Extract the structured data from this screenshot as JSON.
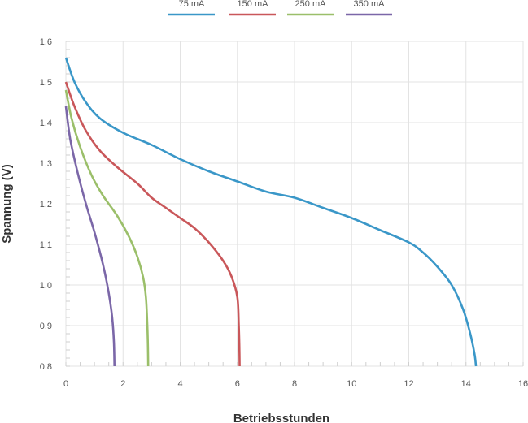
{
  "chart_data": {
    "type": "line",
    "xlabel": "Betriebsstunden",
    "ylabel": "Spannung (V)",
    "xlim": [
      0,
      16
    ],
    "ylim": [
      0.8,
      1.6
    ],
    "x_ticks": [
      "0",
      "2",
      "4",
      "6",
      "8",
      "10",
      "12",
      "14",
      "16"
    ],
    "y_ticks": [
      "0.8",
      "0.9",
      "1.0",
      "1.1",
      "1.2",
      "1.3",
      "1.4",
      "1.5",
      "1.6"
    ],
    "grid": true,
    "legend_position": "top",
    "series": [
      {
        "name": "75 mA",
        "color": "#3a97c8",
        "points": [
          [
            0,
            1.56
          ],
          [
            0.3,
            1.5
          ],
          [
            0.7,
            1.45
          ],
          [
            1.2,
            1.41
          ],
          [
            2,
            1.375
          ],
          [
            3,
            1.345
          ],
          [
            4,
            1.31
          ],
          [
            5,
            1.28
          ],
          [
            6,
            1.255
          ],
          [
            7,
            1.23
          ],
          [
            8,
            1.215
          ],
          [
            9,
            1.19
          ],
          [
            10,
            1.165
          ],
          [
            11,
            1.135
          ],
          [
            12,
            1.105
          ],
          [
            12.5,
            1.08
          ],
          [
            13,
            1.045
          ],
          [
            13.5,
            1.0
          ],
          [
            13.9,
            0.94
          ],
          [
            14.15,
            0.88
          ],
          [
            14.3,
            0.83
          ],
          [
            14.35,
            0.8
          ]
        ]
      },
      {
        "name": "150 mA",
        "color": "#c9575a",
        "points": [
          [
            0,
            1.5
          ],
          [
            0.3,
            1.44
          ],
          [
            0.7,
            1.38
          ],
          [
            1.2,
            1.33
          ],
          [
            1.8,
            1.29
          ],
          [
            2.5,
            1.25
          ],
          [
            3,
            1.215
          ],
          [
            3.5,
            1.19
          ],
          [
            4,
            1.165
          ],
          [
            4.5,
            1.14
          ],
          [
            5,
            1.105
          ],
          [
            5.5,
            1.06
          ],
          [
            5.8,
            1.02
          ],
          [
            6,
            0.97
          ],
          [
            6.05,
            0.9
          ],
          [
            6.07,
            0.85
          ],
          [
            6.08,
            0.8
          ]
        ]
      },
      {
        "name": "250 mA",
        "color": "#9bbf6a",
        "points": [
          [
            0,
            1.48
          ],
          [
            0.2,
            1.41
          ],
          [
            0.5,
            1.34
          ],
          [
            0.9,
            1.27
          ],
          [
            1.3,
            1.22
          ],
          [
            1.8,
            1.17
          ],
          [
            2.2,
            1.12
          ],
          [
            2.5,
            1.07
          ],
          [
            2.7,
            1.02
          ],
          [
            2.8,
            0.97
          ],
          [
            2.85,
            0.9
          ],
          [
            2.87,
            0.85
          ],
          [
            2.88,
            0.8
          ]
        ]
      },
      {
        "name": "350 mA",
        "color": "#7b67a8",
        "points": [
          [
            0,
            1.44
          ],
          [
            0.15,
            1.36
          ],
          [
            0.4,
            1.28
          ],
          [
            0.7,
            1.2
          ],
          [
            1.0,
            1.13
          ],
          [
            1.3,
            1.05
          ],
          [
            1.5,
            0.98
          ],
          [
            1.62,
            0.92
          ],
          [
            1.68,
            0.86
          ],
          [
            1.7,
            0.8
          ]
        ]
      }
    ]
  }
}
